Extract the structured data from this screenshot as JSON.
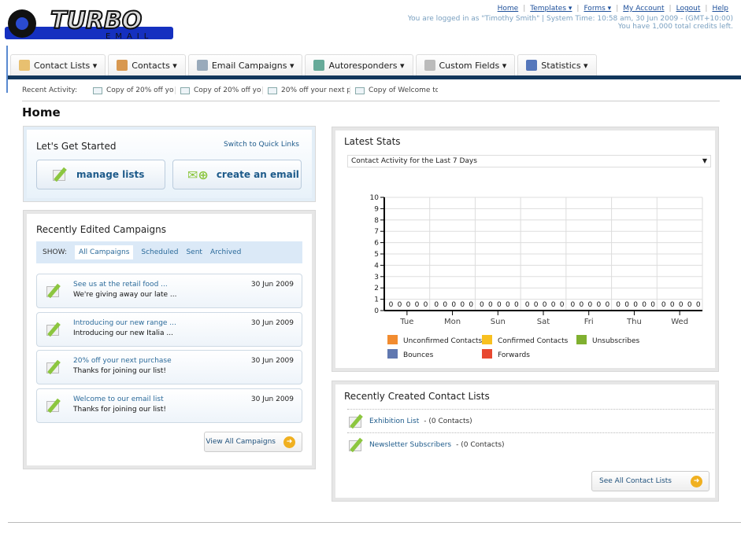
{
  "logo": {
    "text": "TURBO",
    "sub": "EMAIL"
  },
  "top": {
    "links": [
      "Home",
      "Templates ▾",
      "Forms ▾",
      "My Account",
      "Logout",
      "Help"
    ],
    "login": "You are logged in as \"Timothy Smith\" | System Time: 10:58 am, 30 Jun 2009 - (GMT+10:00)",
    "credits": "You have 1,000 total credits left."
  },
  "nav": {
    "tabs": [
      {
        "label": "Contact Lists ▾",
        "color": "#e8c070"
      },
      {
        "label": "Contacts ▾",
        "color": "#d89850"
      },
      {
        "label": "Email Campaigns ▾",
        "color": "#9ab"
      },
      {
        "label": "Autoresponders ▾",
        "color": "#6a9"
      },
      {
        "label": "Custom Fields ▾",
        "color": "#bbb"
      },
      {
        "label": "Statistics ▾",
        "color": "#5577bb"
      }
    ]
  },
  "recent": {
    "label": "Recent Activity:",
    "items": [
      "Copy of 20% off yo",
      "Copy of 20% off yo",
      "20% off your next p",
      "Copy of Welcome to"
    ]
  },
  "page": {
    "title": "Home"
  },
  "started": {
    "title": "Let's Get Started",
    "switch": "Switch to Quick Links",
    "manage": "manage lists",
    "create": "create an email"
  },
  "campaigns": {
    "title": "Recently Edited Campaigns",
    "show": "SHOW:",
    "filters": [
      "All Campaigns",
      "Scheduled",
      "Sent",
      "Archived"
    ],
    "items": [
      {
        "title": "See us at the retail food ...",
        "sub": "We're giving away our late ...",
        "date": "30 Jun 2009"
      },
      {
        "title": "Introducing our new range ...",
        "sub": "Introducing our new Italia ...",
        "date": "30 Jun 2009"
      },
      {
        "title": "20% off your next purchase",
        "sub": "Thanks for joining our list!",
        "date": "30 Jun 2009"
      },
      {
        "title": "Welcome to our email list",
        "sub": "Thanks for joining our list!",
        "date": "30 Jun 2009"
      }
    ],
    "view_all": "View All Campaigns"
  },
  "stats": {
    "title": "Latest Stats",
    "select": "Contact Activity for the Last 7 Days"
  },
  "chart_data": {
    "type": "bar",
    "categories": [
      "Tue",
      "Mon",
      "Sun",
      "Sat",
      "Fri",
      "Thu",
      "Wed"
    ],
    "ylim": [
      0,
      10
    ],
    "yticks": [
      0,
      1,
      2,
      3,
      4,
      5,
      6,
      7,
      8,
      9,
      10
    ],
    "grid": true,
    "legend": "bottom",
    "series": [
      {
        "name": "Unconfirmed Contacts",
        "color": "#f28c30",
        "values": [
          0,
          0,
          0,
          0,
          0,
          0,
          0
        ]
      },
      {
        "name": "Confirmed Contacts",
        "color": "#f8c020",
        "values": [
          0,
          0,
          0,
          0,
          0,
          0,
          0
        ]
      },
      {
        "name": "Unsubscribes",
        "color": "#80b030",
        "values": [
          0,
          0,
          0,
          0,
          0,
          0,
          0
        ]
      },
      {
        "name": "Bounces",
        "color": "#6078b0",
        "values": [
          0,
          0,
          0,
          0,
          0,
          0,
          0
        ]
      },
      {
        "name": "Forwards",
        "color": "#e84830",
        "values": [
          0,
          0,
          0,
          0,
          0,
          0,
          0
        ]
      }
    ]
  },
  "lists": {
    "title": "Recently Created Contact Lists",
    "items": [
      {
        "name": "Exhibition List",
        "count": " - (0 Contacts)"
      },
      {
        "name": "Newsletter Subscribers",
        "count": " - (0 Contacts)"
      }
    ],
    "see_all": "See All Contact Lists"
  }
}
